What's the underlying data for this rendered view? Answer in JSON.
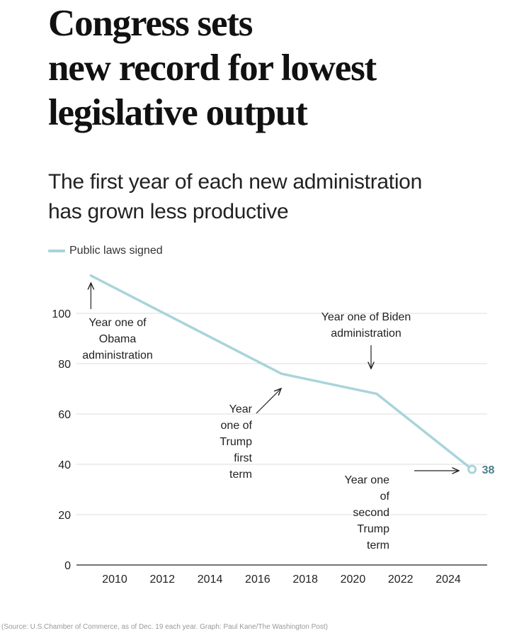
{
  "header": {
    "title_lines": [
      "Congress sets",
      "new record for lowest",
      "legislative output"
    ],
    "subtitle_lines": [
      "The first year of each new administration",
      "has grown less productive"
    ]
  },
  "legend": {
    "label": "Public laws signed"
  },
  "source": "(Source: U.S.Chamber of Commerce, as of Dec. 19 each year. Graph: Paul Kane/The Washington Post)",
  "colors": {
    "line": "#a9d4db",
    "grid": "#dddddd",
    "end_label": "#4c7f8a"
  },
  "chart_data": {
    "type": "line",
    "title": "Congress sets new record for lowest legislative output",
    "subtitle": "The first year of each new administration has grown less productive",
    "series": [
      {
        "name": "Public laws signed",
        "x": [
          2009,
          2017,
          2021,
          2025
        ],
        "values": [
          115,
          76,
          68,
          38
        ]
      }
    ],
    "x_ticks": [
      2010,
      2012,
      2014,
      2016,
      2018,
      2020,
      2022,
      2024
    ],
    "y_ticks": [
      0,
      20,
      40,
      60,
      80,
      100
    ],
    "xlim": [
      2008.6,
      2025.8
    ],
    "ylim": [
      0,
      120
    ],
    "grid": true,
    "legend_position": "top-left",
    "end_label": "38",
    "annotations": [
      {
        "text_lines": [
          "Year one of",
          "Obama",
          "administration"
        ],
        "x": 2009,
        "y": 115
      },
      {
        "text_lines": [
          "Year",
          "one of",
          "Trump",
          "first",
          "term"
        ],
        "x": 2017,
        "y": 76
      },
      {
        "text_lines": [
          "Year one of Biden",
          "administration"
        ],
        "x": 2021,
        "y": 68
      },
      {
        "text_lines": [
          "Year one",
          "of",
          "second",
          "Trump",
          "term"
        ],
        "x": 2025,
        "y": 38
      }
    ]
  }
}
